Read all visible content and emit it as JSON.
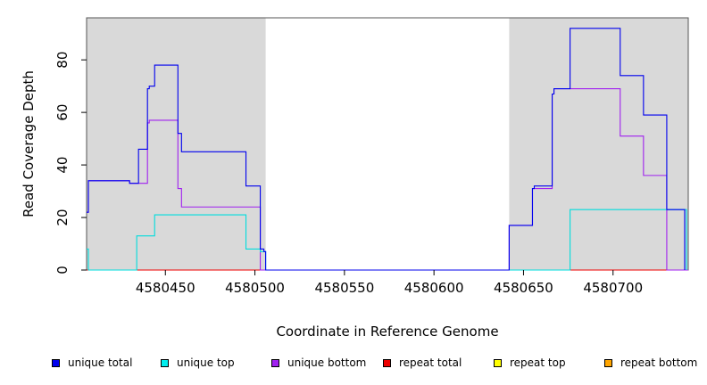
{
  "chart_data": {
    "type": "line",
    "step": true,
    "title": "",
    "xlabel": "Coordinate in Reference Genome",
    "ylabel": "Read Coverage Depth",
    "xlim": [
      4580406,
      4580742
    ],
    "ylim": [
      0,
      96
    ],
    "x_ticks": [
      4580450,
      4580500,
      4580550,
      4580600,
      4580650,
      4580700
    ],
    "y_ticks": [
      0,
      20,
      40,
      60,
      80
    ],
    "shaded_regions": [
      [
        4580406,
        4580506
      ],
      [
        4580642,
        4580742
      ]
    ],
    "series": [
      {
        "name": "unique total",
        "color": "#0000ee",
        "x": [
          4580406,
          4580407,
          4580408,
          4580430,
          4580435,
          4580440,
          4580441,
          4580444,
          4580457,
          4580459,
          4580495,
          4580503,
          4580505,
          4580506,
          4580642,
          4580655,
          4580656,
          4580666,
          4580667,
          4580676,
          4580704,
          4580717,
          4580730,
          4580740
        ],
        "y": [
          22,
          34,
          34,
          33,
          46,
          69,
          70,
          78,
          52,
          45,
          32,
          8,
          7,
          0,
          17,
          31,
          32,
          67,
          69,
          92,
          74,
          59,
          23,
          0
        ]
      },
      {
        "name": "unique top",
        "color": "#00dddd",
        "x": [
          4580406,
          4580407,
          4580434,
          4580444,
          4580495,
          4580503,
          4580506,
          4580642,
          4580676,
          4580740,
          4580741
        ],
        "y": [
          8,
          0,
          13,
          21,
          8,
          7,
          0,
          0,
          23,
          23,
          0
        ]
      },
      {
        "name": "unique bottom",
        "color": "#a020f0",
        "x": [
          4580406,
          4580407,
          4580408,
          4580430,
          4580435,
          4580440,
          4580441,
          4580444,
          4580457,
          4580459,
          4580503,
          4580506,
          4580642,
          4580655,
          4580666,
          4580667,
          4580676,
          4580704,
          4580717,
          4580730,
          4580742
        ],
        "y": [
          22,
          34,
          34,
          33,
          33,
          56,
          57,
          57,
          31,
          24,
          0,
          0,
          17,
          31,
          67,
          69,
          69,
          51,
          36,
          0,
          0
        ]
      },
      {
        "name": "repeat total",
        "color": "#ee0000",
        "x": [
          4580406,
          4580742
        ],
        "y": [
          0,
          0
        ]
      },
      {
        "name": "repeat top",
        "color": "#eeee00",
        "x": [
          4580406,
          4580742
        ],
        "y": [
          0,
          0
        ]
      },
      {
        "name": "repeat bottom",
        "color": "#ee9a00",
        "x": [
          4580406,
          4580742
        ],
        "y": [
          0,
          0
        ]
      }
    ]
  },
  "legend": [
    {
      "label": "unique total",
      "color": "#0000ee"
    },
    {
      "label": "unique top",
      "color": "#00eeee"
    },
    {
      "label": "unique bottom",
      "color": "#a020f0"
    },
    {
      "label": "repeat total",
      "color": "#ee0000"
    },
    {
      "label": "repeat top",
      "color": "#ffff00"
    },
    {
      "label": "repeat bottom",
      "color": "#ffa500"
    }
  ]
}
